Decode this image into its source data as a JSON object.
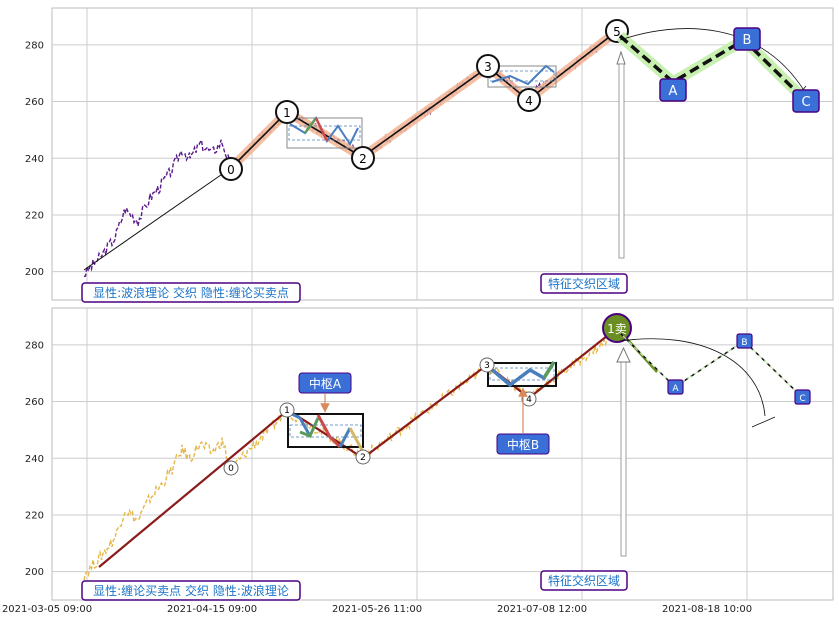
{
  "colors": {
    "grid": "#cccccc",
    "frame": "#bbbbbb",
    "price_top": "#5a1a8a",
    "price_bottom": "#e6b84a",
    "trend_top_fill": "#f4b89a",
    "trend_bottom": "#8b1a1a",
    "label_box_border": "#4b0082",
    "label_box_text": "#1a73c8",
    "letter_box_fill": "#3a6fd8",
    "sell_circle": "#6b8e23",
    "bracket_green": "#c8f0b0",
    "zigzag_blue": "#4a7fbf",
    "zigzag_red": "#c94a4a",
    "zigzag_green": "#5a9a5a",
    "zigzag_tan": "#d4b86a"
  },
  "x_ticks": [
    "2021-03-05 09:00",
    "2021-04-15 09:00",
    "2021-05-26 11:00",
    "2021-07-08 12:00",
    "2021-08-18 10:00"
  ],
  "chart_data": [
    {
      "type": "line",
      "ylim": [
        190,
        293
      ],
      "y_ticks": [
        200,
        220,
        240,
        260,
        280
      ],
      "grid": true,
      "wave_points": [
        {
          "label": "0",
          "value": 236.5
        },
        {
          "label": "1",
          "value": 256.5
        },
        {
          "label": "2",
          "value": 240.5
        },
        {
          "label": "3",
          "value": 272.5
        },
        {
          "label": "4",
          "value": 262
        },
        {
          "label": "5",
          "value": 284
        }
      ],
      "projection": [
        {
          "label": "A",
          "value": 264.5
        },
        {
          "label": "B",
          "value": 281
        },
        {
          "label": "C",
          "value": 260.5
        }
      ],
      "footer_label": "显性:波浪理论 交织 隐性:缠论买卖点",
      "zone_label": "特征交织区域"
    },
    {
      "type": "line",
      "ylim": [
        190,
        293
      ],
      "y_ticks": [
        200,
        220,
        240,
        260,
        280
      ],
      "grid": true,
      "wave_points": [
        {
          "label": "0",
          "value": 236.5
        },
        {
          "label": "1",
          "value": 256.5
        },
        {
          "label": "2",
          "value": 240.5
        },
        {
          "label": "3",
          "value": 272.5
        },
        {
          "label": "4",
          "value": 262
        }
      ],
      "sell_point": {
        "label": "1卖",
        "value": 284
      },
      "projection": [
        {
          "label": "A",
          "value": 264.5
        },
        {
          "label": "B",
          "value": 281
        },
        {
          "label": "C",
          "value": 260.5
        }
      ],
      "pivots": [
        {
          "label": "中枢A",
          "range": [
            244,
            255
          ]
        },
        {
          "label": "中枢B",
          "range": [
            265.5,
            273
          ]
        }
      ],
      "footer_label": "显性:缠论买卖点 交织 隐性:波浪理论",
      "zone_label": "特征交织区域"
    }
  ]
}
